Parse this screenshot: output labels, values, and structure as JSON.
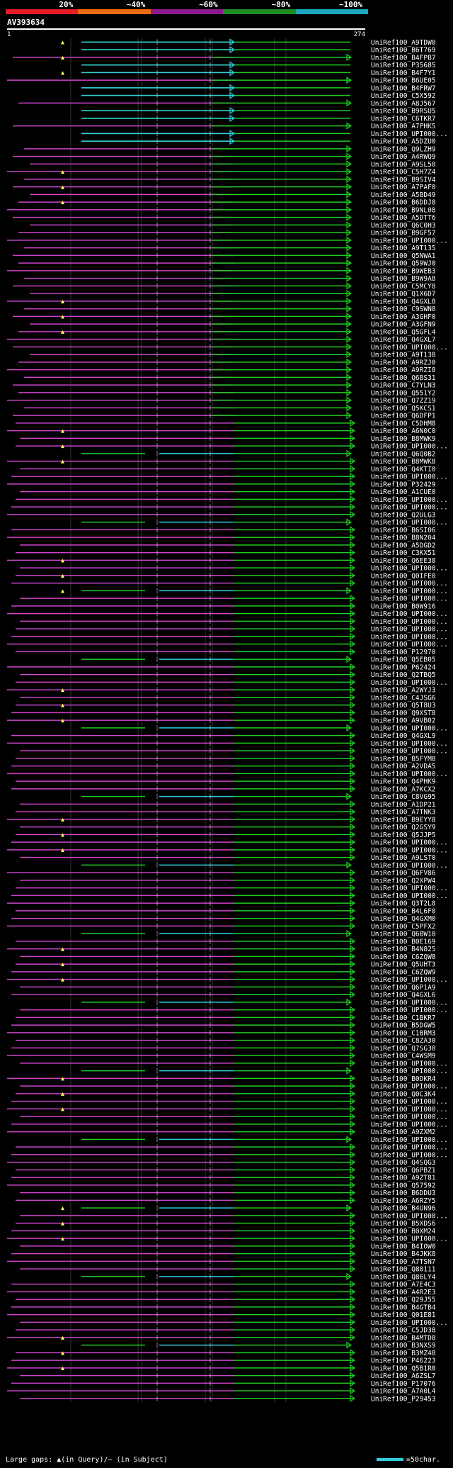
{
  "scale": {
    "segments": [
      {
        "label": "20%",
        "color": "#e81c24"
      },
      {
        "label": "~40%",
        "color": "#ec6a10"
      },
      {
        "label": "~60%",
        "color": "#8b1a8c"
      },
      {
        "label": "~80%",
        "color": "#1f8a1f"
      },
      {
        "label": "~100%",
        "color": "#1aa8c0"
      }
    ]
  },
  "query": {
    "id": "AV393634",
    "start": "1",
    "end": "274"
  },
  "colors": {
    "cyan": "#33ccdd",
    "green": "#22cc22",
    "magenta": "#cc44cc",
    "pink": "#ff88ff",
    "grid": "#333333",
    "gap": "#ffff66"
  },
  "legend": {
    "text": "Large gaps: ▲(in Query)/– (in Subject)",
    "scale": "=50char."
  },
  "hits": [
    "UniRef100_A9TDW0",
    "UniRef100_B6T769",
    "UniRef100_B4FPB7",
    "UniRef100_P35685",
    "UniRef100_B4F7Y1",
    "UniRef100_B6UE05",
    "UniRef100_B4FRW7",
    "UniRef100_C5X592",
    "UniRef100_A8J567",
    "UniRef100_B9RSU5",
    "UniRef100_C6TKR7",
    "UniRef100_A7PHK5",
    "UniRef100_UPI000...",
    "UniRef100_A5DZU0",
    "UniRef100_Q9LZH9",
    "UniRef100_A4RWQ9",
    "UniRef100_A9SL50",
    "UniRef100_C5H7Z4",
    "UniRef100_B9SIV4",
    "UniRef100_A7PAF0",
    "UniRef100_A5BD49",
    "UniRef100_B6DDJ8",
    "UniRef100_B9NL08",
    "UniRef100_A5DTT6",
    "UniRef100_Q6C0H3",
    "UniRef100_B9GF57",
    "UniRef100_UPI000...",
    "UniRef100_A9T135",
    "UniRef100_Q5NWA1",
    "UniRef100_Q59WJ0",
    "UniRef100_B9WEB3",
    "UniRef100_B9W9A8",
    "UniRef100_C5MCY8",
    "UniRef100_Q1X6D7",
    "UniRef100_Q4GXL8",
    "UniRef100_C9SWN8",
    "UniRef100_A3GHF0",
    "UniRef100_A3GFN9",
    "UniRef100_Q5GFL4",
    "UniRef100_Q4GXL7",
    "UniRef100_UPI000...",
    "UniRef100_A9T138",
    "UniRef100_A9RZJ0",
    "UniRef100_A9RZI8",
    "UniRef100_Q6BS31",
    "UniRef100_C7YLN3",
    "UniRef100_Q551Y2",
    "UniRef100_Q7ZZ19",
    "UniRef100_Q5KCS1",
    "UniRef100_Q6DFP1",
    "UniRef100_C5DHM8",
    "UniRef100_A6N0C0",
    "UniRef100_B8MWK9",
    "UniRef100_UPI000...",
    "UniRef100_Q6Q0B2",
    "UniRef100_B8MWK8",
    "UniRef100_Q4KTI0",
    "UniRef100_UPI000...",
    "UniRef100_P32429",
    "UniRef100_A1CUE0",
    "UniRef100_UPI000...",
    "UniRef100_UPI000...",
    "UniRef100_Q2ULG3",
    "UniRef100_UPI000...",
    "UniRef100_B6SI06",
    "UniRef100_B8N204",
    "UniRef100_A5DGD2",
    "UniRef100_C3KX51",
    "UniRef100_Q6EE38",
    "UniRef100_UPI000...",
    "UniRef100_Q0IFE0",
    "UniRef100_UPI000...",
    "UniRef100_UPI000...",
    "UniRef100_UPI000...",
    "UniRef100_B0W916",
    "UniRef100_UPI000...",
    "UniRef100_UPI000...",
    "UniRef100_UPI000...",
    "UniRef100_UPI000...",
    "UniRef100_UPI000...",
    "UniRef100_P12970",
    "UniRef100_Q5EB05",
    "UniRef100_P62424",
    "UniRef100_Q2TBQ5",
    "UniRef100_UPI000...",
    "UniRef100_A2WYJ3",
    "UniRef100_C4JSG6",
    "UniRef100_Q5T8U3",
    "UniRef100_Q9XST8",
    "UniRef100_A9VB02",
    "UniRef100_UPI000...",
    "UniRef100_Q4GXL9",
    "UniRef100_UPI000...",
    "UniRef100_UPI000...",
    "UniRef100_B5FYM8",
    "UniRef100_A2VDA5",
    "UniRef100_UPI000...",
    "UniRef100_Q4PHK9",
    "UniRef100_A7KCX2",
    "UniRef100_C8VG95",
    "UniRef100_A1DP21",
    "UniRef100_A7TNK3",
    "UniRef100_B9EYY8",
    "UniRef100_Q2GSY9",
    "UniRef100_Q5JJP5",
    "UniRef100_UPI000...",
    "UniRef100_UPI000...",
    "UniRef100_A9LST0",
    "UniRef100_UPI000...",
    "UniRef100_Q6FV86",
    "UniRef100_Q2XPW4",
    "UniRef100_UPI000...",
    "UniRef100_UPI000...",
    "UniRef100_Q3T2L8",
    "UniRef100_B4L6F0",
    "UniRef100_Q4GXM0",
    "UniRef100_C5PFX2",
    "UniRef100_Q6BW10",
    "UniRef100_B0E169",
    "UniRef100_B4N825",
    "UniRef100_C6ZQW8",
    "UniRef100_Q5UHT3",
    "UniRef100_C6ZQW9",
    "UniRef100_UPI000...",
    "UniRef100_Q6P1A9",
    "UniRef100_Q4GXL6",
    "UniRef100_UPI000...",
    "UniRef100_UPI000...",
    "UniRef100_C1BKR7",
    "UniRef100_B5DGW5",
    "UniRef100_C1BRM3",
    "UniRef100_C8ZA30",
    "UniRef100_Q7SG30",
    "UniRef100_C4WSM9",
    "UniRef100_UPI000...",
    "UniRef100_UPI000...",
    "UniRef100_B0DKR4",
    "UniRef100_UPI000...",
    "UniRef100_Q0C3K4",
    "UniRef100_UPI000...",
    "UniRef100_UPI000...",
    "UniRef100_UPI000...",
    "UniRef100_UPI000...",
    "UniRef100_A9ZXM2",
    "UniRef100_UPI000...",
    "UniRef100_UPI000...",
    "UniRef100_UPI000...",
    "UniRef100_Q4SQG3",
    "UniRef100_Q6PBZ1",
    "UniRef100_A9ZT81",
    "UniRef100_Q57592",
    "UniRef100_B6DDU3",
    "UniRef100_A6RZY5",
    "UniRef100_B4UN96",
    "UniRef100_UPI000...",
    "UniRef100_B5XDS6",
    "UniRef100_B0XM24",
    "UniRef100_UPI000...",
    "UniRef100_B4IOW0",
    "UniRef100_B4JKK8",
    "UniRef100_A7TSN7",
    "UniRef100_Q80111",
    "UniRef100_Q86LY4",
    "UniRef100_A7E4C3",
    "UniRef100_A4R2E3",
    "UniRef100_Q29J55",
    "UniRef100_B4GTB4",
    "UniRef100_Q01E81",
    "UniRef100_UPI000...",
    "UniRef100_C5JD38",
    "UniRef100_B4MTD8",
    "UniRef100_B3NXS9",
    "UniRef100_B3MZ48",
    "UniRef100_P46223",
    "UniRef100_Q5B1R0",
    "UniRef100_A6ZSL7",
    "UniRef100_P17076",
    "UniRef100_A7A0L4",
    "UniRef100_P29453"
  ]
}
